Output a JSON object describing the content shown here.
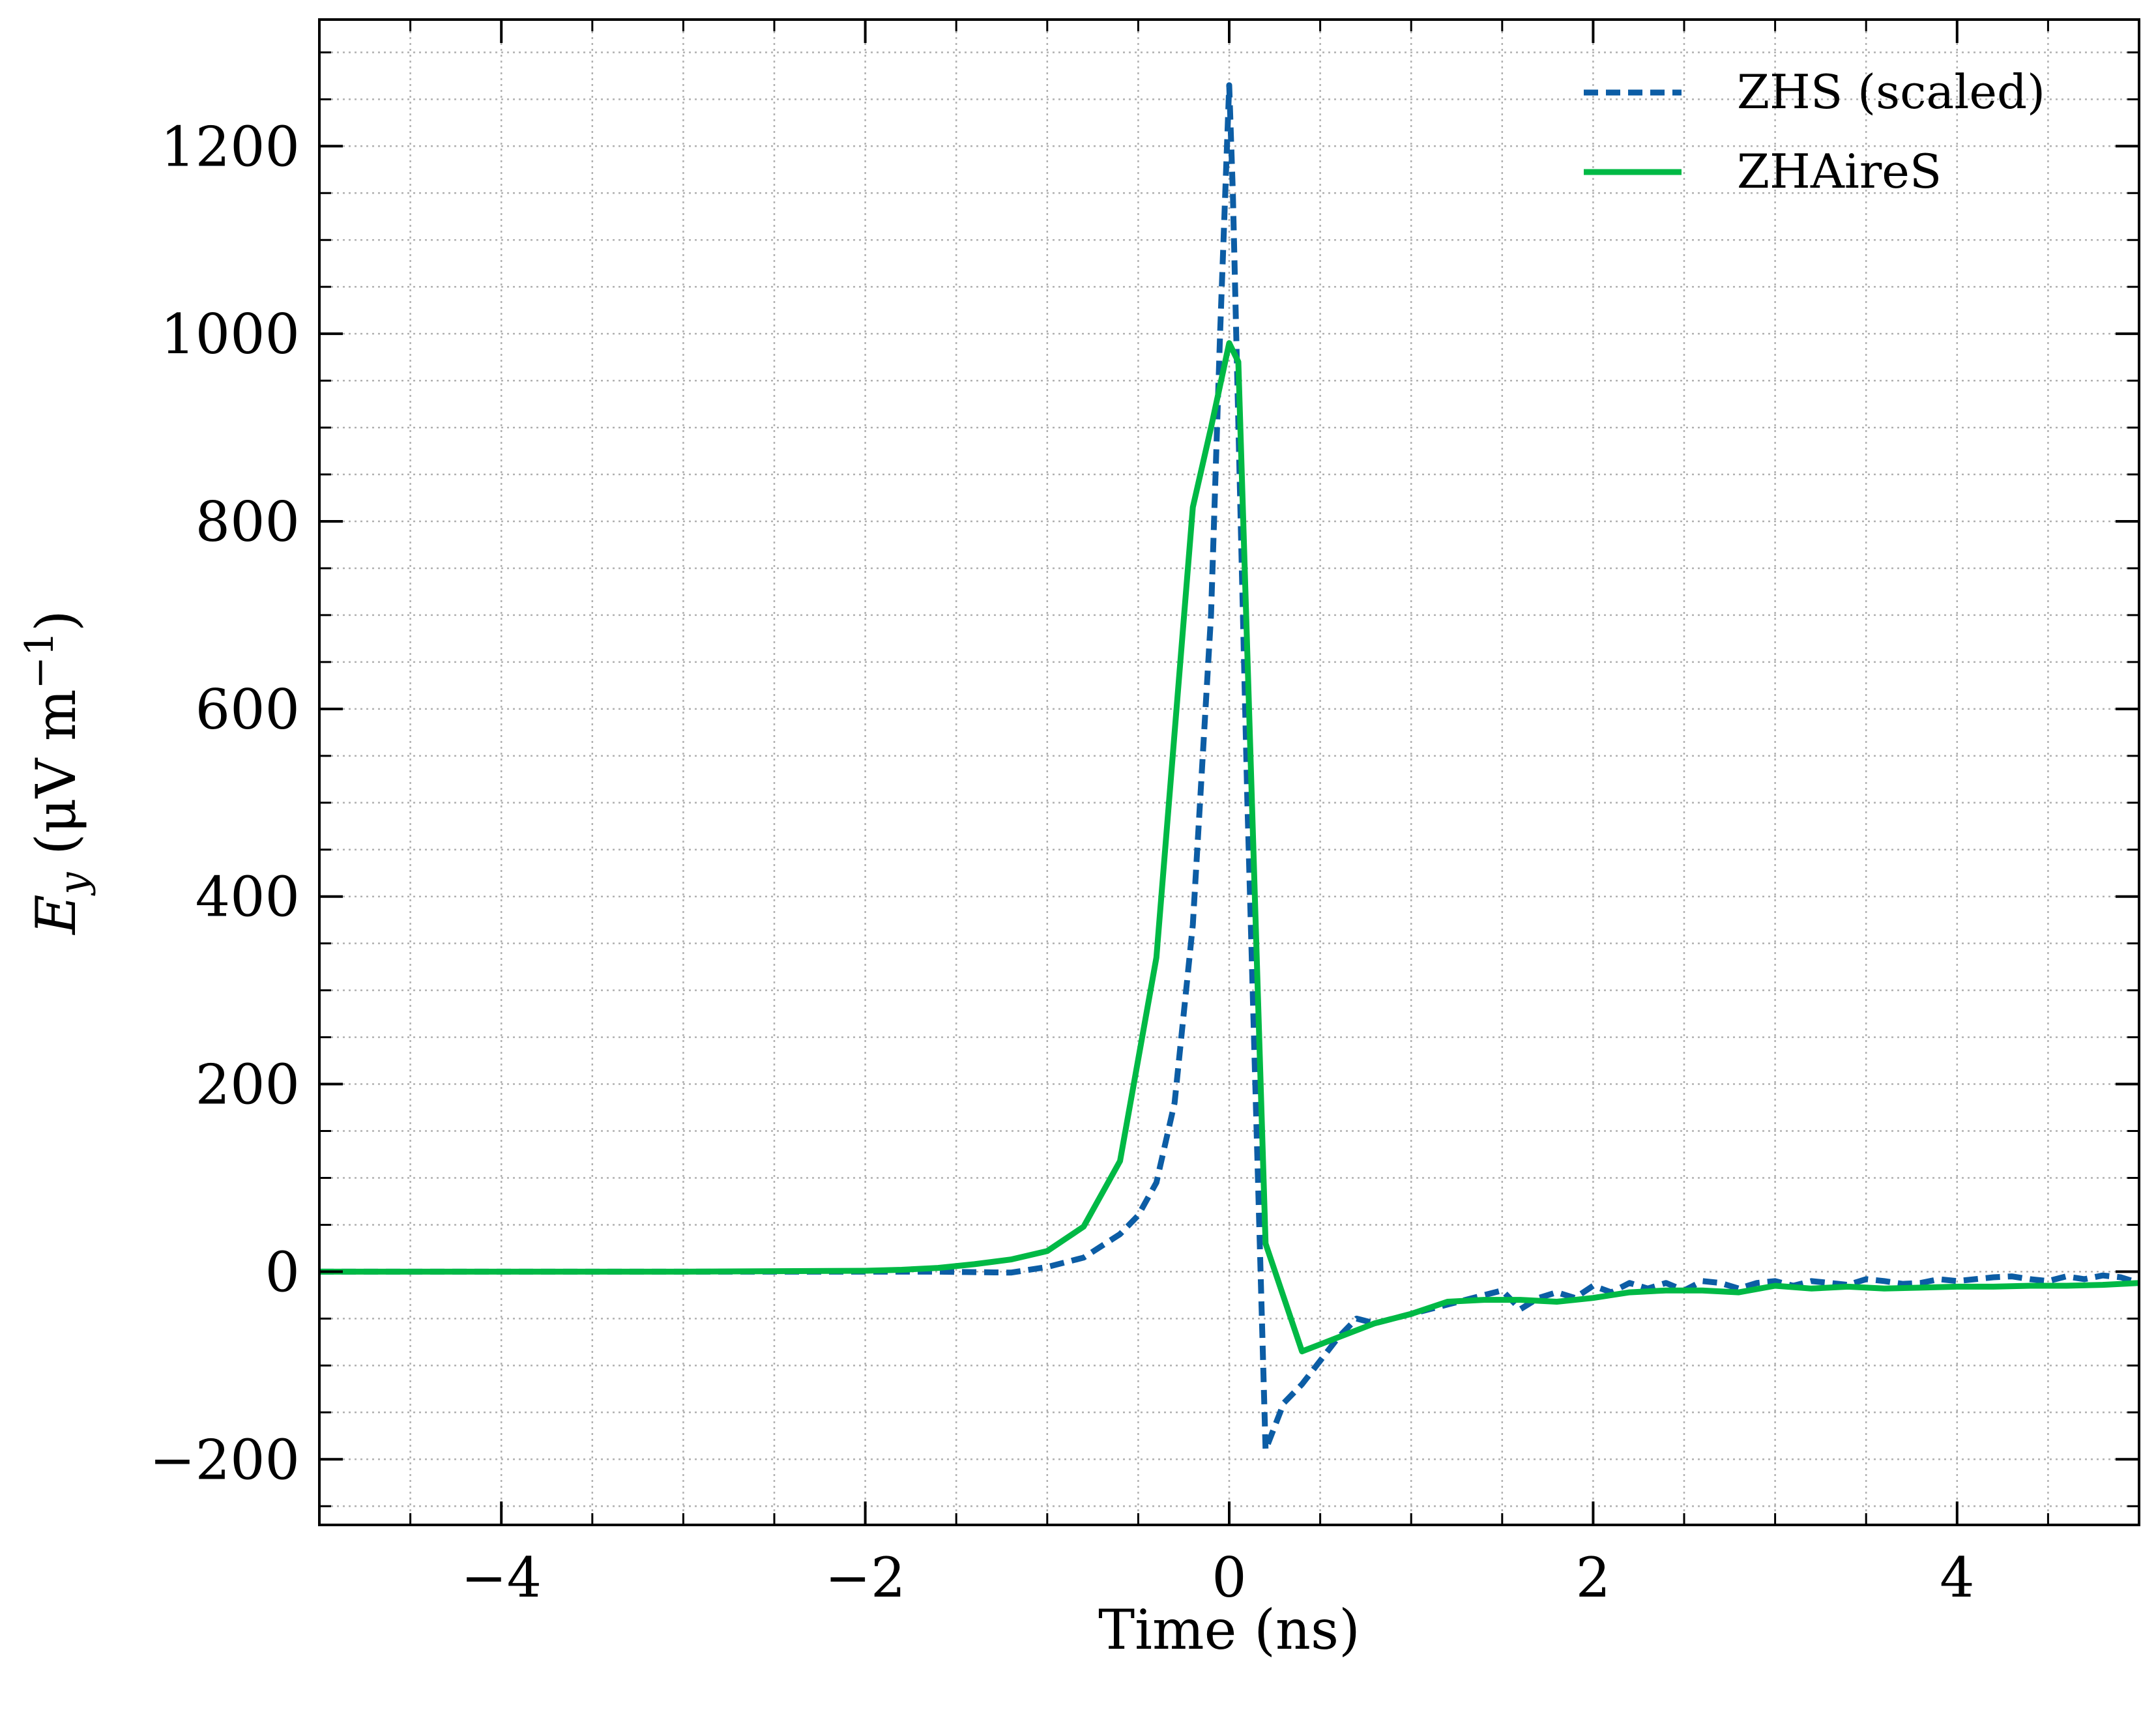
{
  "chart_data": {
    "type": "line",
    "xlabel": "Time (ns)",
    "ylabel": "E_y (μV m⁻¹)",
    "ylabel_parts": {
      "symbol": "E",
      "subscript": "y",
      "unit_open": " (μV m",
      "exponent": "−1",
      "unit_close": ")"
    },
    "xlim": [
      -5,
      5
    ],
    "ylim": [
      -270,
      1335
    ],
    "x_ticks": [
      -4,
      -2,
      0,
      2,
      4
    ],
    "x_tick_labels": [
      "−4",
      "−2",
      "0",
      "2",
      "4"
    ],
    "y_ticks": [
      -200,
      0,
      200,
      400,
      600,
      800,
      1000,
      1200
    ],
    "y_tick_labels": [
      "−200",
      "0",
      "200",
      "400",
      "600",
      "800",
      "1000",
      "1200"
    ],
    "x_minor_step": 0.5,
    "y_minor_step": 50,
    "grid": true,
    "legend_position": "top-right",
    "series": [
      {
        "name": "ZHS (scaled)",
        "color": "#0c5da5",
        "style": "dashed",
        "x": [
          -5,
          -4,
          -3,
          -2,
          -1.6,
          -1.2,
          -1.0,
          -0.8,
          -0.6,
          -0.5,
          -0.4,
          -0.3,
          -0.2,
          -0.1,
          -0.05,
          0.0,
          0.02,
          0.1,
          0.2,
          0.3,
          0.4,
          0.5,
          0.6,
          0.7,
          0.8,
          1.0,
          1.2,
          1.4,
          1.5,
          1.6,
          1.7,
          1.8,
          1.9,
          2.0,
          2.1,
          2.2,
          2.3,
          2.4,
          2.5,
          2.6,
          2.7,
          2.8,
          2.9,
          3.0,
          3.1,
          3.2,
          3.3,
          3.4,
          3.5,
          3.6,
          3.7,
          3.8,
          3.9,
          4.0,
          4.1,
          4.2,
          4.3,
          4.4,
          4.5,
          4.6,
          4.7,
          4.8,
          4.9,
          5.0
        ],
        "y": [
          0,
          0,
          0,
          0,
          0,
          -1,
          5,
          15,
          40,
          60,
          95,
          180,
          370,
          700,
          1000,
          1265,
          1150,
          500,
          -190,
          -140,
          -120,
          -95,
          -70,
          -50,
          -55,
          -45,
          -35,
          -25,
          -20,
          -40,
          -28,
          -22,
          -28,
          -15,
          -22,
          -12,
          -18,
          -12,
          -20,
          -10,
          -12,
          -18,
          -12,
          -10,
          -15,
          -10,
          -12,
          -14,
          -8,
          -10,
          -13,
          -12,
          -8,
          -10,
          -8,
          -6,
          -5,
          -8,
          -10,
          -5,
          -8,
          -4,
          -6,
          -12
        ]
      },
      {
        "name": "ZHAireS",
        "color": "#00b945",
        "style": "solid",
        "x": [
          -5,
          -4,
          -3,
          -2,
          -1.8,
          -1.6,
          -1.4,
          -1.2,
          -1.0,
          -0.8,
          -0.6,
          -0.4,
          -0.2,
          -0.1,
          0.0,
          0.05,
          0.2,
          0.4,
          0.6,
          0.8,
          1.0,
          1.2,
          1.4,
          1.6,
          1.8,
          2.0,
          2.2,
          2.4,
          2.6,
          2.8,
          3.0,
          3.2,
          3.4,
          3.6,
          3.8,
          4.0,
          4.2,
          4.4,
          4.6,
          4.8,
          5.0
        ],
        "y": [
          0,
          0,
          0,
          1,
          2,
          4,
          8,
          13,
          22,
          48,
          118,
          335,
          815,
          900,
          990,
          970,
          30,
          -85,
          -70,
          -55,
          -45,
          -32,
          -30,
          -30,
          -32,
          -28,
          -22,
          -20,
          -20,
          -22,
          -15,
          -18,
          -16,
          -18,
          -17,
          -16,
          -16,
          -15,
          -15,
          -14,
          -12
        ]
      }
    ]
  }
}
